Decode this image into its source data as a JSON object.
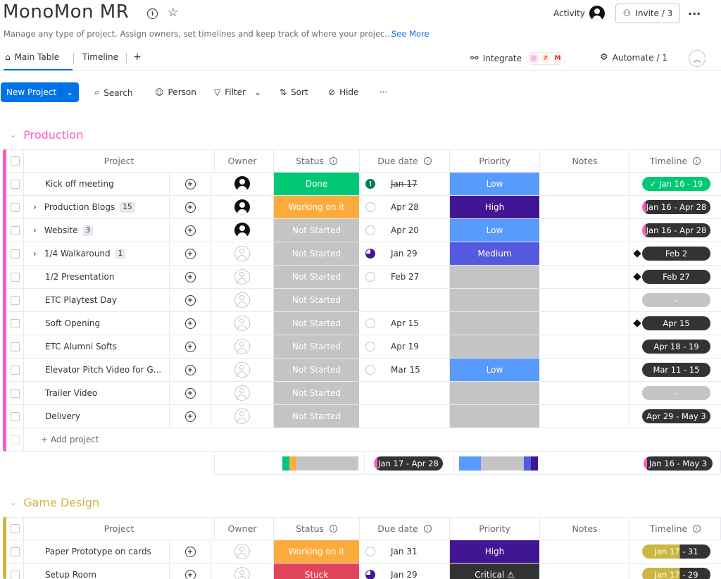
{
  "board": {
    "title": "MonoMon MR",
    "description": "Manage any type of project. Assign owners, set timelines and keep track of where your projec...",
    "see_more": "See More",
    "activity": "Activity",
    "invite": "Invite / 3"
  },
  "tabs": {
    "main": "Main Table",
    "timeline": "Timeline",
    "add": "+",
    "integrate": "Integrate",
    "automate": "Automate / 1"
  },
  "toolbar": {
    "new_project": "New Project",
    "search": "Search",
    "person": "Person",
    "filter": "Filter",
    "sort": "Sort",
    "hide": "Hide",
    "more": "···"
  },
  "columns": {
    "project": "Project",
    "owner": "Owner",
    "status": "Status",
    "due": "Due date",
    "priority": "Priority",
    "notes": "Notes",
    "timeline": "Timeline"
  },
  "colors": {
    "production": "#ff5ac4",
    "game_design": "#cab641",
    "done": "#00c875",
    "working": "#fdab3d",
    "stuck": "#e2445c",
    "not_started": "#c4c4c4",
    "low": "#579bfc",
    "high": "#401694",
    "medium": "#5559df",
    "critical": "#333333",
    "dark_pill": "#333333"
  },
  "groups": [
    {
      "name": "Production",
      "add_label": "+ Add project",
      "summary_timeline": "Jan 16 - May 3",
      "summary_due": "Jan 17 - Apr 28",
      "rows": [
        {
          "name": "Kick off meeting",
          "count": "",
          "expand": false,
          "owner": "filled",
          "status": "Done",
          "status_key": "done",
          "due_icon": "alert",
          "due": "Jan 17",
          "due_strike": true,
          "priority": "Low",
          "priority_key": "low",
          "timeline": "Jan 16 - 19",
          "timeline_style": "done"
        },
        {
          "name": "Production Blogs",
          "count": "15",
          "expand": true,
          "owner": "filled",
          "status": "Working on it",
          "status_key": "working",
          "due_icon": "circle",
          "due": "Apr 28",
          "due_strike": false,
          "priority": "High",
          "priority_key": "high",
          "timeline": "Jan 16 - Apr 28",
          "timeline_style": "progress"
        },
        {
          "name": "Website",
          "count": "3",
          "expand": true,
          "owner": "filled",
          "status": "Not Started",
          "status_key": "not_started",
          "due_icon": "circle",
          "due": "Apr 20",
          "due_strike": false,
          "priority": "Low",
          "priority_key": "low",
          "timeline": "Jan 16 - Apr 28",
          "timeline_style": "progress"
        },
        {
          "name": "1/4 Walkaround",
          "count": "1",
          "expand": true,
          "owner": "empty",
          "status": "Not Started",
          "status_key": "not_started",
          "due_icon": "partial",
          "due": "Jan 29",
          "due_strike": false,
          "priority": "Medium",
          "priority_key": "medium",
          "timeline": "Feb 2",
          "timeline_style": "milestone"
        },
        {
          "name": "1/2 Presentation",
          "count": "",
          "expand": false,
          "owner": "empty",
          "status": "Not Started",
          "status_key": "not_started",
          "due_icon": "circle",
          "due": "Feb 27",
          "due_strike": false,
          "priority": "",
          "priority_key": "not_started",
          "timeline": "Feb 27",
          "timeline_style": "milestone"
        },
        {
          "name": "ETC Playtest Day",
          "count": "",
          "expand": false,
          "owner": "empty",
          "status": "Not Started",
          "status_key": "not_started",
          "due_icon": "",
          "due": "",
          "due_strike": false,
          "priority": "",
          "priority_key": "not_started",
          "timeline": "-",
          "timeline_style": "empty"
        },
        {
          "name": "Soft Opening",
          "count": "",
          "expand": false,
          "owner": "empty",
          "status": "Not Started",
          "status_key": "not_started",
          "due_icon": "circle",
          "due": "Apr 15",
          "due_strike": false,
          "priority": "",
          "priority_key": "not_started",
          "timeline": "Apr 15",
          "timeline_style": "milestone"
        },
        {
          "name": "ETC Alumni Softs",
          "count": "",
          "expand": false,
          "owner": "empty",
          "status": "Not Started",
          "status_key": "not_started",
          "due_icon": "circle",
          "due": "Apr 19",
          "due_strike": false,
          "priority": "",
          "priority_key": "not_started",
          "timeline": "Apr 18 - 19",
          "timeline_style": "dark"
        },
        {
          "name": "Elevator Pitch Video for G...",
          "count": "",
          "expand": false,
          "owner": "empty",
          "status": "Not Started",
          "status_key": "not_started",
          "due_icon": "circle",
          "due": "Mar 15",
          "due_strike": false,
          "priority": "Low",
          "priority_key": "low",
          "timeline": "Mar 11 - 15",
          "timeline_style": "dark"
        },
        {
          "name": "Trailer Video",
          "count": "",
          "expand": false,
          "owner": "empty",
          "status": "Not Started",
          "status_key": "not_started",
          "due_icon": "",
          "due": "",
          "due_strike": false,
          "priority": "",
          "priority_key": "not_started",
          "timeline": "-",
          "timeline_style": "empty"
        },
        {
          "name": "Delivery",
          "count": "",
          "expand": false,
          "owner": "empty",
          "status": "Not Started",
          "status_key": "not_started",
          "due_icon": "",
          "due": "",
          "due_strike": false,
          "priority": "",
          "priority_key": "not_started",
          "timeline": "Apr 29 - May 3",
          "timeline_style": "dark"
        }
      ]
    },
    {
      "name": "Game Design",
      "rows": [
        {
          "name": "Paper Prototype on cards",
          "count": "",
          "expand": false,
          "owner": "empty",
          "status": "Working on it",
          "status_key": "working",
          "due_icon": "circle",
          "due": "Jan 31",
          "due_strike": false,
          "priority": "High",
          "priority_key": "high",
          "timeline": "Jan 17 - 31",
          "timeline_style": "gold"
        },
        {
          "name": "Setup Room",
          "count": "",
          "expand": false,
          "owner": "empty",
          "status": "Stuck",
          "status_key": "stuck",
          "due_icon": "partial",
          "due": "Jan 29",
          "due_strike": false,
          "priority": "Critical ⚠",
          "priority_key": "critical",
          "timeline": "Jan 17 - 29",
          "timeline_style": "gold"
        }
      ]
    }
  ]
}
